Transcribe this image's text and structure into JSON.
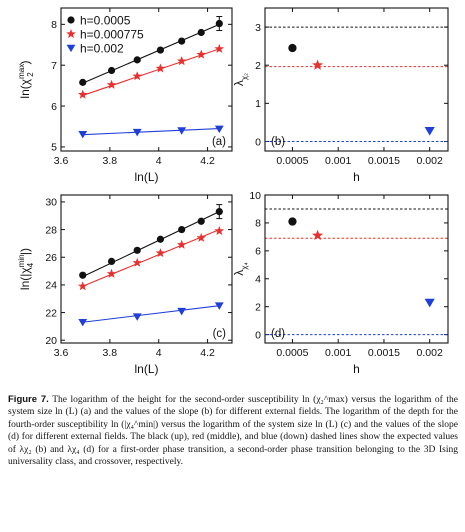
{
  "colors": {
    "black": "#111111",
    "red": "#e8302e",
    "blue": "#1f3fd8"
  },
  "chart_data": [
    {
      "type": "line",
      "panel_label": "(a)",
      "xlabel": "ln(L)",
      "ylabel_prefix": "ln(χ",
      "ylabel_sub": "2",
      "ylabel_sup": "max",
      "ylabel_suffix": ")",
      "xlim": [
        3.6,
        4.3
      ],
      "ylim": [
        4.9,
        8.4
      ],
      "xticks": [
        3.6,
        3.8,
        4,
        4.2
      ],
      "xtick_labels": [
        "3.6",
        "3.8",
        "4",
        "4.2"
      ],
      "yticks": [
        5,
        6,
        7,
        8
      ],
      "ytick_labels": [
        "5",
        "6",
        "7",
        "8"
      ],
      "legend_position": "top-left",
      "x": [
        3.689,
        3.807,
        3.912,
        4.007,
        4.094,
        4.174,
        4.248
      ],
      "series": [
        {
          "name": "h=0.0005",
          "color": "black",
          "marker": "circle",
          "values": [
            6.58,
            6.87,
            7.13,
            7.37,
            7.59,
            7.8,
            8.02
          ],
          "fit": [
            [
              3.689,
              6.56
            ],
            [
              4.248,
              8.0
            ]
          ]
        },
        {
          "name": "h=0.000775",
          "color": "red",
          "marker": "star",
          "values": [
            6.28,
            6.52,
            6.73,
            6.92,
            7.1,
            7.26,
            7.4
          ],
          "fit": [
            [
              3.689,
              6.26
            ],
            [
              4.248,
              7.4
            ]
          ]
        },
        {
          "name": "h=0.002",
          "color": "blue",
          "marker": "triangle",
          "x": [
            3.689,
            3.912,
            4.094,
            4.248
          ],
          "values": [
            5.31,
            5.36,
            5.4,
            5.44
          ],
          "fit": [
            [
              3.689,
              5.3
            ],
            [
              4.248,
              5.45
            ]
          ]
        }
      ]
    },
    {
      "type": "scatter",
      "panel_label": "(b)",
      "xlabel": "h",
      "ylabel_prefix": "λ",
      "ylabel_sub": "χ₂",
      "xlim": [
        0.0002,
        0.0022
      ],
      "ylim": [
        -0.25,
        3.5
      ],
      "xticks": [
        0.0005,
        0.001,
        0.0015,
        0.002
      ],
      "xtick_labels": [
        "0.0005",
        "0.001",
        "0.0015",
        "0.002"
      ],
      "yticks": [
        0,
        1,
        2,
        3
      ],
      "ytick_labels": [
        "0",
        "1",
        "2",
        "3"
      ],
      "points": [
        {
          "x": 0.0005,
          "y": 2.45,
          "color": "black",
          "marker": "circle"
        },
        {
          "x": 0.000775,
          "y": 2.0,
          "color": "red",
          "marker": "star"
        },
        {
          "x": 0.002,
          "y": 0.28,
          "color": "blue",
          "marker": "triangle"
        }
      ],
      "reference_lines": [
        {
          "y": 3,
          "color": "black"
        },
        {
          "y": 1.963,
          "color": "red"
        },
        {
          "y": 0,
          "color": "blue"
        }
      ]
    },
    {
      "type": "line",
      "panel_label": "(c)",
      "xlabel": "ln(L)",
      "ylabel_prefix": "ln(|χ",
      "ylabel_sub": "4",
      "ylabel_sup": "min",
      "ylabel_suffix": "|)",
      "xlim": [
        3.6,
        4.3
      ],
      "ylim": [
        19.8,
        30.5
      ],
      "xticks": [
        3.6,
        3.8,
        4,
        4.2
      ],
      "xtick_labels": [
        "3.6",
        "3.8",
        "4",
        "4.2"
      ],
      "yticks": [
        20,
        22,
        24,
        26,
        28,
        30
      ],
      "ytick_labels": [
        "20",
        "22",
        "24",
        "26",
        "28",
        "30"
      ],
      "x": [
        3.689,
        3.807,
        3.912,
        4.007,
        4.094,
        4.174,
        4.248
      ],
      "series": [
        {
          "color": "black",
          "marker": "circle",
          "values": [
            24.7,
            25.7,
            26.5,
            27.3,
            28.0,
            28.6,
            29.3
          ],
          "fit": [
            [
              3.689,
              24.6
            ],
            [
              4.248,
              29.3
            ]
          ]
        },
        {
          "color": "red",
          "marker": "star",
          "values": [
            23.9,
            24.8,
            25.6,
            26.3,
            26.9,
            27.4,
            27.9
          ],
          "fit": [
            [
              3.689,
              23.9
            ],
            [
              4.248,
              28.0
            ]
          ]
        },
        {
          "color": "blue",
          "marker": "triangle",
          "x": [
            3.689,
            3.912,
            4.094,
            4.248
          ],
          "values": [
            21.3,
            21.7,
            22.1,
            22.5
          ],
          "fit": [
            [
              3.689,
              21.3
            ],
            [
              4.248,
              22.5
            ]
          ]
        }
      ]
    },
    {
      "type": "scatter",
      "panel_label": "(d)",
      "xlabel": "h",
      "ylabel_prefix": "λ",
      "ylabel_sub": "χ₄",
      "xlim": [
        0.0002,
        0.0022
      ],
      "ylim": [
        -0.6,
        10
      ],
      "xticks": [
        0.0005,
        0.001,
        0.0015,
        0.002
      ],
      "xtick_labels": [
        "0.0005",
        "0.001",
        "0.0015",
        "0.002"
      ],
      "yticks": [
        0,
        2,
        4,
        6,
        8,
        10
      ],
      "ytick_labels": [
        "0",
        "2",
        "4",
        "6",
        "8",
        "10"
      ],
      "points": [
        {
          "x": 0.0005,
          "y": 8.1,
          "color": "black",
          "marker": "circle"
        },
        {
          "x": 0.000775,
          "y": 7.1,
          "color": "red",
          "marker": "star"
        },
        {
          "x": 0.002,
          "y": 2.3,
          "color": "blue",
          "marker": "triangle"
        }
      ],
      "reference_lines": [
        {
          "y": 9,
          "color": "black"
        },
        {
          "y": 6.9,
          "color": "red"
        },
        {
          "y": 0,
          "color": "blue"
        }
      ]
    }
  ],
  "caption": {
    "lead": "Figure 7.",
    "text": "The logarithm of the height for the second-order susceptibility ln (χ₂^max) versus the logarithm of the system size ln (L) (a) and the values of the slope (b) for different external fields. The logarithm of the depth for the fourth-order susceptibility ln (|χ₄^min|) versus the logarithm of the system size ln (L) (c) and the values of the slope (d) for different external fields. The black (up), red (middle), and blue (down) dashed lines show the expected values of λχ₂ (b) and λχ₄ (d) for a first-order phase transition, a second-order phase transition belonging to the 3D Ising universality class, and crossover, respectively."
  }
}
